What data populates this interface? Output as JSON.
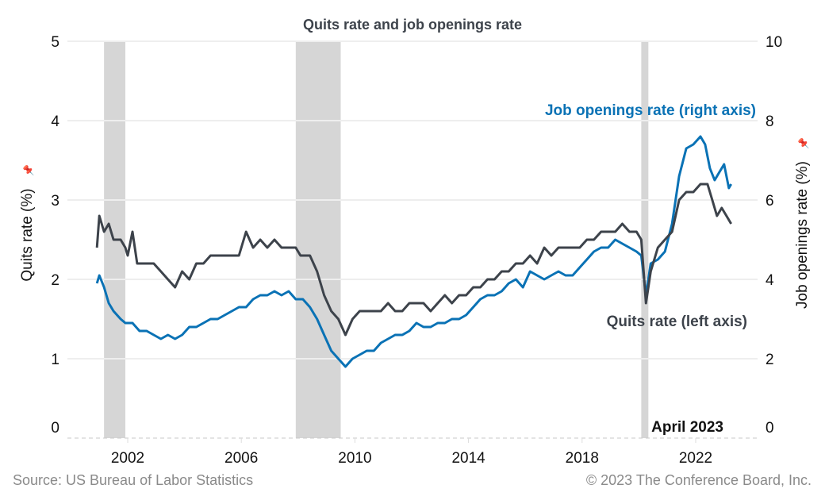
{
  "chart_data": {
    "type": "line",
    "title": "Quits rate and job openings rate",
    "ylabel_left": "Quits rate (%)",
    "ylabel_right": "Job openings rate (%)",
    "ylim_left": [
      0,
      5
    ],
    "ylim_right": [
      0,
      10
    ],
    "yticks_left": [
      0,
      1,
      2,
      3,
      4,
      5
    ],
    "yticks_right": [
      0,
      2,
      4,
      6,
      8,
      10
    ],
    "xticks": [
      2002,
      2006,
      2010,
      2014,
      2018,
      2022
    ],
    "grid": "horizontal",
    "colors": {
      "quits": "#3d434b",
      "openings": "#0a72b5",
      "recession": "#d6d6d6",
      "grid": "#eeeeee"
    },
    "recessions": [
      [
        "2001-03",
        "2001-11"
      ],
      [
        "2007-12",
        "2009-06"
      ],
      [
        "2020-02",
        "2020-04"
      ]
    ],
    "annotations": {
      "openings_label": "Job openings rate (right axis)",
      "quits_label": "Quits rate (left axis)",
      "date_label": "April 2023"
    },
    "series": [
      {
        "name": "Quits rate (left axis)",
        "axis": "left",
        "points": [
          [
            "2000-12",
            2.4
          ],
          [
            "2001-01",
            2.8
          ],
          [
            "2001-03",
            2.6
          ],
          [
            "2001-05",
            2.7
          ],
          [
            "2001-07",
            2.5
          ],
          [
            "2001-10",
            2.5
          ],
          [
            "2001-12",
            2.4
          ],
          [
            "2002-01",
            2.3
          ],
          [
            "2002-03",
            2.6
          ],
          [
            "2002-05",
            2.2
          ],
          [
            "2002-08",
            2.2
          ],
          [
            "2002-12",
            2.2
          ],
          [
            "2003-03",
            2.1
          ],
          [
            "2003-06",
            2.0
          ],
          [
            "2003-09",
            1.9
          ],
          [
            "2003-12",
            2.1
          ],
          [
            "2004-03",
            2.0
          ],
          [
            "2004-06",
            2.2
          ],
          [
            "2004-09",
            2.2
          ],
          [
            "2004-12",
            2.3
          ],
          [
            "2005-06",
            2.3
          ],
          [
            "2005-12",
            2.3
          ],
          [
            "2006-03",
            2.6
          ],
          [
            "2006-06",
            2.4
          ],
          [
            "2006-09",
            2.5
          ],
          [
            "2006-12",
            2.4
          ],
          [
            "2007-03",
            2.5
          ],
          [
            "2007-06",
            2.4
          ],
          [
            "2007-09",
            2.4
          ],
          [
            "2007-12",
            2.4
          ],
          [
            "2008-02",
            2.3
          ],
          [
            "2008-06",
            2.3
          ],
          [
            "2008-09",
            2.1
          ],
          [
            "2008-12",
            1.8
          ],
          [
            "2009-03",
            1.6
          ],
          [
            "2009-06",
            1.5
          ],
          [
            "2009-09",
            1.3
          ],
          [
            "2009-12",
            1.5
          ],
          [
            "2010-03",
            1.6
          ],
          [
            "2010-06",
            1.6
          ],
          [
            "2010-09",
            1.6
          ],
          [
            "2010-12",
            1.6
          ],
          [
            "2011-03",
            1.7
          ],
          [
            "2011-06",
            1.6
          ],
          [
            "2011-09",
            1.6
          ],
          [
            "2011-12",
            1.7
          ],
          [
            "2012-03",
            1.7
          ],
          [
            "2012-06",
            1.7
          ],
          [
            "2012-09",
            1.6
          ],
          [
            "2012-12",
            1.7
          ],
          [
            "2013-03",
            1.8
          ],
          [
            "2013-06",
            1.7
          ],
          [
            "2013-09",
            1.8
          ],
          [
            "2013-12",
            1.8
          ],
          [
            "2014-03",
            1.9
          ],
          [
            "2014-06",
            1.9
          ],
          [
            "2014-09",
            2.0
          ],
          [
            "2014-12",
            2.0
          ],
          [
            "2015-03",
            2.1
          ],
          [
            "2015-06",
            2.1
          ],
          [
            "2015-09",
            2.2
          ],
          [
            "2015-12",
            2.2
          ],
          [
            "2016-03",
            2.3
          ],
          [
            "2016-06",
            2.2
          ],
          [
            "2016-09",
            2.4
          ],
          [
            "2016-12",
            2.3
          ],
          [
            "2017-03",
            2.4
          ],
          [
            "2017-06",
            2.4
          ],
          [
            "2017-09",
            2.4
          ],
          [
            "2017-12",
            2.4
          ],
          [
            "2018-03",
            2.5
          ],
          [
            "2018-06",
            2.5
          ],
          [
            "2018-09",
            2.6
          ],
          [
            "2018-12",
            2.6
          ],
          [
            "2019-03",
            2.6
          ],
          [
            "2019-06",
            2.7
          ],
          [
            "2019-09",
            2.6
          ],
          [
            "2019-12",
            2.6
          ],
          [
            "2020-02",
            2.5
          ],
          [
            "2020-04",
            1.7
          ],
          [
            "2020-06",
            2.1
          ],
          [
            "2020-09",
            2.4
          ],
          [
            "2020-12",
            2.5
          ],
          [
            "2021-03",
            2.6
          ],
          [
            "2021-06",
            3.0
          ],
          [
            "2021-09",
            3.1
          ],
          [
            "2021-12",
            3.1
          ],
          [
            "2022-03",
            3.2
          ],
          [
            "2022-06",
            3.2
          ],
          [
            "2022-08",
            3.0
          ],
          [
            "2022-10",
            2.8
          ],
          [
            "2022-12",
            2.9
          ],
          [
            "2023-02",
            2.8
          ],
          [
            "2023-04",
            2.7
          ]
        ]
      },
      {
        "name": "Job openings rate (right axis)",
        "axis": "right",
        "points": [
          [
            "2000-12",
            3.9
          ],
          [
            "2001-01",
            4.1
          ],
          [
            "2001-03",
            3.8
          ],
          [
            "2001-05",
            3.4
          ],
          [
            "2001-07",
            3.2
          ],
          [
            "2001-10",
            3.0
          ],
          [
            "2001-12",
            2.9
          ],
          [
            "2002-03",
            2.9
          ],
          [
            "2002-06",
            2.7
          ],
          [
            "2002-09",
            2.7
          ],
          [
            "2002-12",
            2.6
          ],
          [
            "2003-03",
            2.5
          ],
          [
            "2003-06",
            2.6
          ],
          [
            "2003-09",
            2.5
          ],
          [
            "2003-12",
            2.6
          ],
          [
            "2004-03",
            2.8
          ],
          [
            "2004-06",
            2.8
          ],
          [
            "2004-09",
            2.9
          ],
          [
            "2004-12",
            3.0
          ],
          [
            "2005-03",
            3.0
          ],
          [
            "2005-06",
            3.1
          ],
          [
            "2005-09",
            3.2
          ],
          [
            "2005-12",
            3.3
          ],
          [
            "2006-03",
            3.3
          ],
          [
            "2006-06",
            3.5
          ],
          [
            "2006-09",
            3.6
          ],
          [
            "2006-12",
            3.6
          ],
          [
            "2007-03",
            3.7
          ],
          [
            "2007-06",
            3.6
          ],
          [
            "2007-09",
            3.7
          ],
          [
            "2007-12",
            3.5
          ],
          [
            "2008-03",
            3.5
          ],
          [
            "2008-06",
            3.3
          ],
          [
            "2008-09",
            3.0
          ],
          [
            "2008-12",
            2.6
          ],
          [
            "2009-03",
            2.2
          ],
          [
            "2009-06",
            2.0
          ],
          [
            "2009-09",
            1.8
          ],
          [
            "2009-12",
            2.0
          ],
          [
            "2010-03",
            2.1
          ],
          [
            "2010-06",
            2.2
          ],
          [
            "2010-09",
            2.2
          ],
          [
            "2010-12",
            2.4
          ],
          [
            "2011-03",
            2.5
          ],
          [
            "2011-06",
            2.6
          ],
          [
            "2011-09",
            2.6
          ],
          [
            "2011-12",
            2.7
          ],
          [
            "2012-03",
            2.9
          ],
          [
            "2012-06",
            2.8
          ],
          [
            "2012-09",
            2.8
          ],
          [
            "2012-12",
            2.9
          ],
          [
            "2013-03",
            2.9
          ],
          [
            "2013-06",
            3.0
          ],
          [
            "2013-09",
            3.0
          ],
          [
            "2013-12",
            3.1
          ],
          [
            "2014-03",
            3.3
          ],
          [
            "2014-06",
            3.5
          ],
          [
            "2014-09",
            3.6
          ],
          [
            "2014-12",
            3.6
          ],
          [
            "2015-03",
            3.7
          ],
          [
            "2015-06",
            3.9
          ],
          [
            "2015-09",
            4.0
          ],
          [
            "2015-12",
            3.8
          ],
          [
            "2016-03",
            4.2
          ],
          [
            "2016-06",
            4.1
          ],
          [
            "2016-09",
            4.0
          ],
          [
            "2016-12",
            4.1
          ],
          [
            "2017-03",
            4.2
          ],
          [
            "2017-06",
            4.1
          ],
          [
            "2017-09",
            4.1
          ],
          [
            "2017-12",
            4.3
          ],
          [
            "2018-03",
            4.5
          ],
          [
            "2018-06",
            4.7
          ],
          [
            "2018-09",
            4.8
          ],
          [
            "2018-12",
            4.8
          ],
          [
            "2019-03",
            5.0
          ],
          [
            "2019-06",
            4.9
          ],
          [
            "2019-09",
            4.8
          ],
          [
            "2019-12",
            4.7
          ],
          [
            "2020-02",
            4.6
          ],
          [
            "2020-04",
            3.6
          ],
          [
            "2020-06",
            4.4
          ],
          [
            "2020-09",
            4.5
          ],
          [
            "2020-12",
            4.7
          ],
          [
            "2021-03",
            5.4
          ],
          [
            "2021-06",
            6.6
          ],
          [
            "2021-09",
            7.3
          ],
          [
            "2021-12",
            7.4
          ],
          [
            "2022-03",
            7.6
          ],
          [
            "2022-05",
            7.4
          ],
          [
            "2022-07",
            6.8
          ],
          [
            "2022-09",
            6.5
          ],
          [
            "2022-11",
            6.7
          ],
          [
            "2023-01",
            6.9
          ],
          [
            "2023-03",
            6.3
          ],
          [
            "2023-04",
            6.4
          ]
        ]
      }
    ]
  },
  "footer": {
    "source": "Source: US Bureau of Labor Statistics",
    "copyright": "© 2023 The Conference Board, Inc."
  }
}
